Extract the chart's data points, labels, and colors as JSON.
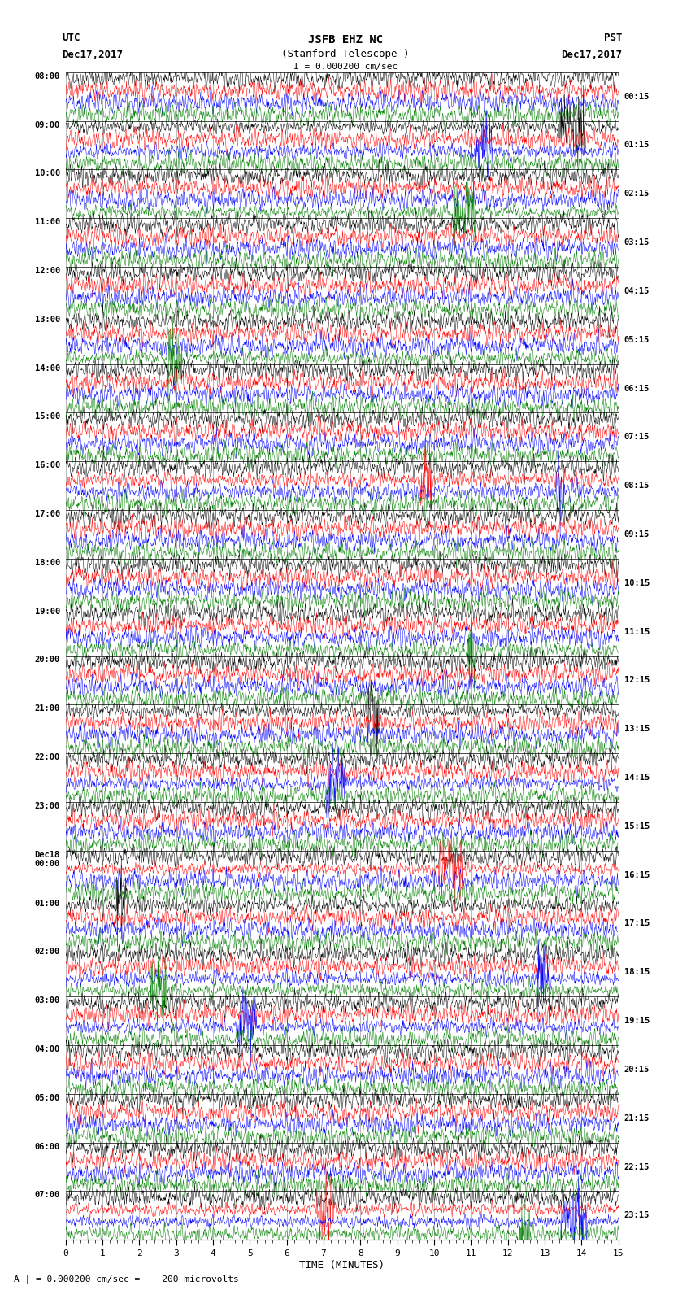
{
  "title_line1": "JSFB EHZ NC",
  "title_line2": "(Stanford Telescope )",
  "scale_label": "I = 0.000200 cm/sec",
  "xlabel": "TIME (MINUTES)",
  "bottom_label": "A | = 0.000200 cm/sec =    200 microvolts",
  "left_times": [
    "08:00",
    "09:00",
    "10:00",
    "11:00",
    "12:00",
    "13:00",
    "14:00",
    "15:00",
    "16:00",
    "17:00",
    "18:00",
    "19:00",
    "20:00",
    "21:00",
    "22:00",
    "23:00",
    "Dec18\n00:00",
    "01:00",
    "02:00",
    "03:00",
    "04:00",
    "05:00",
    "06:00",
    "07:00"
  ],
  "right_times": [
    "00:15",
    "01:15",
    "02:15",
    "03:15",
    "04:15",
    "05:15",
    "06:15",
    "07:15",
    "08:15",
    "09:15",
    "10:15",
    "11:15",
    "12:15",
    "13:15",
    "14:15",
    "15:15",
    "16:15",
    "17:15",
    "18:15",
    "19:15",
    "20:15",
    "21:15",
    "22:15",
    "23:15"
  ],
  "colors": [
    "black",
    "red",
    "blue",
    "green"
  ],
  "n_rows": 24,
  "traces_per_row": 4,
  "x_min": 0,
  "x_max": 15,
  "background_color": "white",
  "fig_width": 8.5,
  "fig_height": 16.13,
  "dpi": 100
}
